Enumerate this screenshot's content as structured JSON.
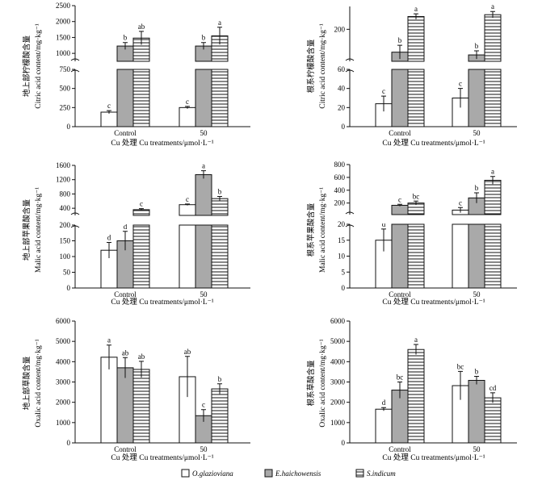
{
  "chart_data": [
    {
      "type": "bar",
      "id": "citric-shoot",
      "categories": [
        "Control",
        "50"
      ],
      "xlabel": "Cu 处理 Cu treatments/μmol·L⁻¹",
      "ylabel_cn": "地上部柠檬酸含量",
      "ylabel_en": "Citric acid content/mg·kg⁻¹",
      "broken_axis": true,
      "ylim_lower": [
        0,
        750
      ],
      "yticks_lower": [
        "0",
        "250",
        "500",
        "750"
      ],
      "ylim_upper": [
        750,
        2500
      ],
      "yticks_upper": [
        "1000",
        "1500",
        "2000",
        "2500"
      ],
      "series": [
        {
          "name": "O.glazioviana",
          "values": [
            190,
            250
          ],
          "errors": [
            20,
            15
          ],
          "sig": [
            "c",
            "c"
          ]
        },
        {
          "name": "E.haichowensis",
          "values": [
            1230,
            1230
          ],
          "errors": [
            110,
            110
          ],
          "sig": [
            "b",
            "b"
          ]
        },
        {
          "name": "S.indicum",
          "values": [
            1480,
            1550
          ],
          "errors": [
            210,
            270
          ],
          "sig": [
            "ab",
            "a"
          ]
        }
      ]
    },
    {
      "type": "bar",
      "id": "citric-root",
      "categories": [
        "Control",
        "50"
      ],
      "xlabel": "Cu 处理 Cu treatments/μmol·L⁻¹",
      "ylabel_cn": "根系柠檬酸含量",
      "ylabel_en": "Citric acid content/mg·kg⁻¹",
      "broken_axis": true,
      "ylim_lower": [
        0,
        60
      ],
      "yticks_lower": [
        "0",
        "20",
        "40",
        "60"
      ],
      "ylim_upper": [
        60,
        300
      ],
      "yticks_upper": [
        "200"
      ],
      "series": [
        {
          "name": "O.glazioviana",
          "values": [
            24,
            30
          ],
          "errors": [
            8,
            10
          ],
          "sig": [
            "c",
            "c"
          ]
        },
        {
          "name": "E.haichowensis",
          "values": [
            100,
            88
          ],
          "errors": [
            30,
            18
          ],
          "sig": [
            "b",
            "b"
          ]
        },
        {
          "name": "S.indicum",
          "values": [
            256,
            264
          ],
          "errors": [
            12,
            14
          ],
          "sig": [
            "a",
            "a"
          ]
        }
      ]
    },
    {
      "type": "bar",
      "id": "malic-shoot",
      "categories": [
        "Control",
        "50"
      ],
      "xlabel": "Cu 处理 Cu treatments/μmol·L⁻¹",
      "ylabel_cn": "地上部苹果酸含量",
      "ylabel_en": "Malic acid content/mg·kg⁻¹",
      "broken_axis": true,
      "ylim_lower": [
        0,
        200
      ],
      "yticks_lower": [
        "0",
        "50",
        "100",
        "150",
        "200"
      ],
      "ylim_upper": [
        200,
        1600
      ],
      "yticks_upper": [
        "400",
        "800",
        "1200",
        "1600"
      ],
      "series": [
        {
          "name": "O.glazioviana",
          "values": [
            120,
            500
          ],
          "errors": [
            25,
            20
          ],
          "sig": [
            "d",
            "c"
          ]
        },
        {
          "name": "E.haichowensis",
          "values": [
            150,
            1340
          ],
          "errors": [
            30,
            110
          ],
          "sig": [
            "d",
            "a"
          ]
        },
        {
          "name": "S.indicum",
          "values": [
            360,
            670
          ],
          "errors": [
            30,
            60
          ],
          "sig": [
            "c",
            "b"
          ]
        }
      ]
    },
    {
      "type": "bar",
      "id": "malic-root",
      "categories": [
        "Control",
        "50"
      ],
      "xlabel": "Cu 处理 Cu treatments/μmol·L⁻¹",
      "ylabel_cn": "根系苹果酸含量",
      "ylabel_en": "Malic acid content/mg·kg⁻¹",
      "broken_axis": true,
      "ylim_lower": [
        0,
        20
      ],
      "yticks_lower": [
        "0",
        "5",
        "10",
        "15",
        "20"
      ],
      "ylim_upper": [
        20,
        800
      ],
      "yticks_upper": [
        "200",
        "400",
        "600",
        "800"
      ],
      "series": [
        {
          "name": "O.glazioviana",
          "values": [
            15,
            90
          ],
          "errors": [
            3.5,
            40
          ],
          "sig": [
            "d",
            "c"
          ]
        },
        {
          "name": "E.haichowensis",
          "values": [
            165,
            280
          ],
          "errors": [
            15,
            80
          ],
          "sig": [
            "c",
            "b"
          ]
        },
        {
          "name": "S.indicum",
          "values": [
            200,
            555
          ],
          "errors": [
            30,
            60
          ],
          "sig": [
            "bc",
            "a"
          ]
        }
      ]
    },
    {
      "type": "bar",
      "id": "oxalic-shoot",
      "categories": [
        "Control",
        "50"
      ],
      "xlabel": "Cu 处理 Cu treatments/μmol·L⁻¹",
      "ylabel_cn": "地上部草酸含量",
      "ylabel_en": "Oxalic acid content/mg·kg⁻¹",
      "broken_axis": false,
      "ylim": [
        0,
        6000
      ],
      "yticks": [
        "0",
        "1000",
        "2000",
        "3000",
        "4000",
        "5000",
        "6000"
      ],
      "series": [
        {
          "name": "O.glazioviana",
          "values": [
            4220,
            3260
          ],
          "errors": [
            600,
            1000
          ],
          "sig": [
            "a",
            "ab"
          ]
        },
        {
          "name": "E.haichowensis",
          "values": [
            3700,
            1340
          ],
          "errors": [
            500,
            300
          ],
          "sig": [
            "ab",
            "c"
          ]
        },
        {
          "name": "S.indicum",
          "values": [
            3620,
            2660
          ],
          "errors": [
            400,
            250
          ],
          "sig": [
            "ab",
            "b"
          ]
        }
      ]
    },
    {
      "type": "bar",
      "id": "oxalic-root",
      "categories": [
        "Control",
        "50"
      ],
      "xlabel": "Cu 处理 Cu treatments/μmol·L⁻¹",
      "ylabel_cn": "根系草酸含量",
      "ylabel_en": "Oxalic acid content/mg·kg⁻¹",
      "broken_axis": false,
      "ylim": [
        0,
        6000
      ],
      "yticks": [
        "0",
        "1000",
        "2000",
        "3000",
        "4000",
        "5000",
        "6000"
      ],
      "series": [
        {
          "name": "O.glazioviana",
          "values": [
            1660,
            2820
          ],
          "errors": [
            80,
            700
          ],
          "sig": [
            "d",
            "bc"
          ]
        },
        {
          "name": "E.haichowensis",
          "values": [
            2600,
            3080
          ],
          "errors": [
            400,
            200
          ],
          "sig": [
            "bc",
            "b"
          ]
        },
        {
          "name": "S.indicum",
          "values": [
            4600,
            2220
          ],
          "errors": [
            250,
            250
          ],
          "sig": [
            "a",
            "cd"
          ]
        }
      ]
    }
  ],
  "legend": [
    {
      "name": "O.glazioviana",
      "fill": "white"
    },
    {
      "name": "E.haichowensis",
      "fill": "gray"
    },
    {
      "name": "S.indicum",
      "fill": "hatch"
    }
  ],
  "colors": {
    "gray_bar": "#a9a9a9",
    "line": "#111111",
    "background": "#ffffff"
  }
}
